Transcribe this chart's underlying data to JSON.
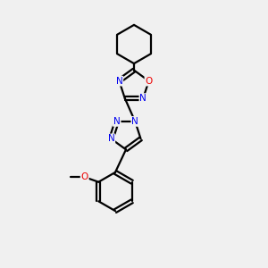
{
  "background_color": "#f0f0f0",
  "bond_color": "#000000",
  "nitrogen_color": "#0000ee",
  "oxygen_color": "#ee0000",
  "line_width": 1.6,
  "figsize": [
    3.0,
    3.0
  ],
  "dpi": 100,
  "xlim": [
    0,
    10
  ],
  "ylim": [
    0,
    10
  ],
  "font_size": 7.5
}
